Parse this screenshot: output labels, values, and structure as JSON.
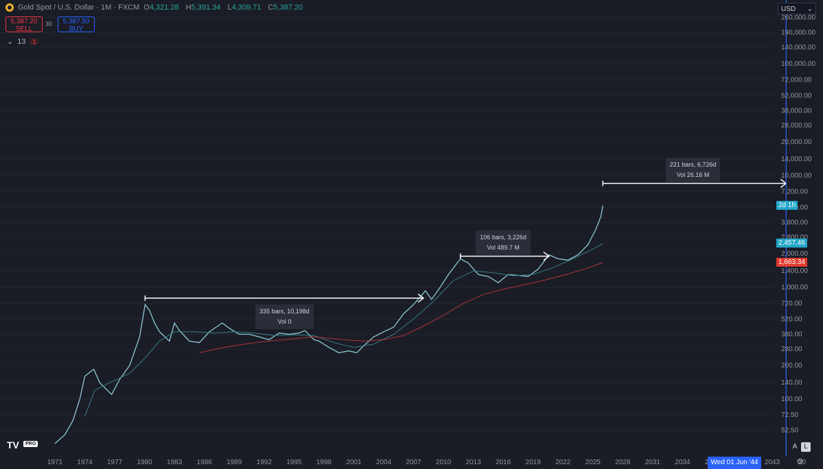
{
  "header": {
    "title": "Gold Spot / U.S. Dollar · 1M · FXCM",
    "o_key": "O",
    "o": "4,321.28",
    "h_key": "H",
    "h": "5,391.34",
    "l_key": "L",
    "l": "4,309.71",
    "c_key": "C",
    "c": "5,387.20"
  },
  "trade": {
    "sell_price": "5,387.20",
    "sell_label": "SELL",
    "spread": "30",
    "buy_price": "5,387.50",
    "buy_label": "BUY"
  },
  "indicators": {
    "collapse_icon": "chevron-down-icon",
    "count": "13",
    "alert_count": "1"
  },
  "axis": {
    "currency": "USD",
    "dropdown_icon": "chevron-down-icon"
  },
  "price_tags": {
    "countdown": {
      "text": "2d 1h",
      "color": "#22a7c9"
    },
    "ma_short": {
      "text": "2,457.46",
      "color": "#22a7c9"
    },
    "ma_long": {
      "text": "1,663.34",
      "color": "#e03b2f"
    }
  },
  "crosshair_date": "Wed 01 Jun '44",
  "buttons": {
    "auto": "A",
    "log": "L"
  },
  "logo": {
    "text": "TV",
    "badge": "PRO"
  },
  "settings_icon": "gear-icon",
  "chart_data": {
    "type": "line",
    "y_scale": "log",
    "y_ticks": [
      "52.50",
      "72.50",
      "100.00",
      "140.00",
      "200.00",
      "280.00",
      "380.00",
      "520.00",
      "720.00",
      "1,000.00",
      "1,400.00",
      "2,000.00",
      "2,800.00",
      "3,800.00",
      "5,200.00",
      "7,200.00",
      "10,000.00",
      "14,000.00",
      "20,000.00",
      "28,000.00",
      "38,000.00",
      "52,000.00",
      "72,000.00",
      "100,000.00",
      "140,000.00",
      "190,000.00",
      "260,000.00"
    ],
    "x_ticks": [
      "1971",
      "1974",
      "1977",
      "1980",
      "1983",
      "1986",
      "1989",
      "1992",
      "1995",
      "1998",
      "2001",
      "2004",
      "2007",
      "2010",
      "2013",
      "2016",
      "2019",
      "2022",
      "2025",
      "2028",
      "2031",
      "2034",
      "2037",
      "2040",
      "2043",
      "20"
    ],
    "series": [
      {
        "values": [
          [
            1971.0,
            40
          ],
          [
            1972.0,
            48
          ],
          [
            1972.8,
            64
          ],
          [
            1973.5,
            100
          ],
          [
            1974.0,
            160
          ],
          [
            1974.9,
            185
          ],
          [
            1975.5,
            140
          ],
          [
            1976.7,
            110
          ],
          [
            1977.5,
            150
          ],
          [
            1978.5,
            200
          ],
          [
            1979.5,
            360
          ],
          [
            1980.05,
            700
          ],
          [
            1980.5,
            620
          ],
          [
            1981.0,
            480
          ],
          [
            1981.5,
            400
          ],
          [
            1982.5,
            330
          ],
          [
            1983.0,
            480
          ],
          [
            1983.5,
            410
          ],
          [
            1984.5,
            330
          ],
          [
            1985.5,
            320
          ],
          [
            1986.5,
            400
          ],
          [
            1987.8,
            480
          ],
          [
            1988.5,
            430
          ],
          [
            1989.5,
            380
          ],
          [
            1990.5,
            380
          ],
          [
            1991.5,
            360
          ],
          [
            1992.5,
            340
          ],
          [
            1993.5,
            390
          ],
          [
            1994.5,
            380
          ],
          [
            1995.5,
            390
          ],
          [
            1996.1,
            410
          ],
          [
            1997.0,
            340
          ],
          [
            1997.5,
            330
          ],
          [
            1998.5,
            290
          ],
          [
            1999.5,
            260
          ],
          [
            2000.5,
            270
          ],
          [
            2001.3,
            260
          ],
          [
            2002.0,
            300
          ],
          [
            2003.0,
            360
          ],
          [
            2004.0,
            400
          ],
          [
            2005.0,
            440
          ],
          [
            2006.0,
            580
          ],
          [
            2007.0,
            700
          ],
          [
            2008.2,
            930
          ],
          [
            2008.8,
            780
          ],
          [
            2009.5,
            950
          ],
          [
            2010.5,
            1300
          ],
          [
            2011.7,
            1800
          ],
          [
            2012.5,
            1650
          ],
          [
            2013.5,
            1300
          ],
          [
            2014.5,
            1250
          ],
          [
            2015.5,
            1100
          ],
          [
            2016.5,
            1300
          ],
          [
            2017.5,
            1280
          ],
          [
            2018.5,
            1250
          ],
          [
            2019.5,
            1450
          ],
          [
            2020.6,
            1950
          ],
          [
            2021.5,
            1800
          ],
          [
            2022.5,
            1750
          ],
          [
            2023.5,
            1950
          ],
          [
            2024.5,
            2400
          ],
          [
            2025.3,
            3300
          ],
          [
            2025.8,
            4300
          ],
          [
            2026.0,
            5387
          ]
        ]
      },
      {
        "values": [
          [
            1974.0,
            70
          ],
          [
            1975.0,
            120
          ],
          [
            1976.5,
            140
          ],
          [
            1978.5,
            170
          ],
          [
            1980.0,
            230
          ],
          [
            1981.5,
            330
          ],
          [
            1983.0,
            400
          ],
          [
            1985.0,
            400
          ],
          [
            1987.0,
            390
          ],
          [
            1989.0,
            400
          ],
          [
            1991.0,
            390
          ],
          [
            1993.0,
            370
          ],
          [
            1995.0,
            375
          ],
          [
            1997.0,
            370
          ],
          [
            1999.0,
            320
          ],
          [
            2001.0,
            290
          ],
          [
            2003.0,
            310
          ],
          [
            2005.0,
            380
          ],
          [
            2007.0,
            520
          ],
          [
            2009.0,
            750
          ],
          [
            2011.0,
            1150
          ],
          [
            2013.0,
            1400
          ],
          [
            2015.0,
            1350
          ],
          [
            2017.0,
            1270
          ],
          [
            2019.0,
            1300
          ],
          [
            2021.0,
            1500
          ],
          [
            2023.0,
            1800
          ],
          [
            2025.0,
            2200
          ],
          [
            2026.0,
            2457.46
          ]
        ]
      },
      {
        "values": [
          [
            1985.5,
            260
          ],
          [
            1988.0,
            290
          ],
          [
            1991.0,
            320
          ],
          [
            1994.0,
            340
          ],
          [
            1997.0,
            360
          ],
          [
            2000.0,
            340
          ],
          [
            2002.0,
            330
          ],
          [
            2004.0,
            340
          ],
          [
            2006.0,
            370
          ],
          [
            2008.0,
            450
          ],
          [
            2010.0,
            560
          ],
          [
            2012.0,
            720
          ],
          [
            2014.0,
            860
          ],
          [
            2016.0,
            960
          ],
          [
            2018.0,
            1050
          ],
          [
            2020.0,
            1150
          ],
          [
            2022.0,
            1280
          ],
          [
            2024.0,
            1440
          ],
          [
            2026.0,
            1663.34
          ]
        ]
      }
    ],
    "measures": [
      {
        "from": [
          1980.05,
          800
        ],
        "to": [
          2008.0,
          800
        ],
        "text1": "335 bars, 10,198d",
        "text2": "Vol 0"
      },
      {
        "from": [
          2011.7,
          1900
        ],
        "to": [
          2020.6,
          1900
        ],
        "text1": "106 bars, 3,226d",
        "text2": "Vol 489.7 M"
      },
      {
        "from": [
          2026.0,
          8500
        ],
        "to": [
          2044.4,
          8500
        ],
        "text1": "221 bars, 6,726d",
        "text2": "Vol 26.16 M"
      }
    ],
    "crosshair_x": 2044.4
  }
}
